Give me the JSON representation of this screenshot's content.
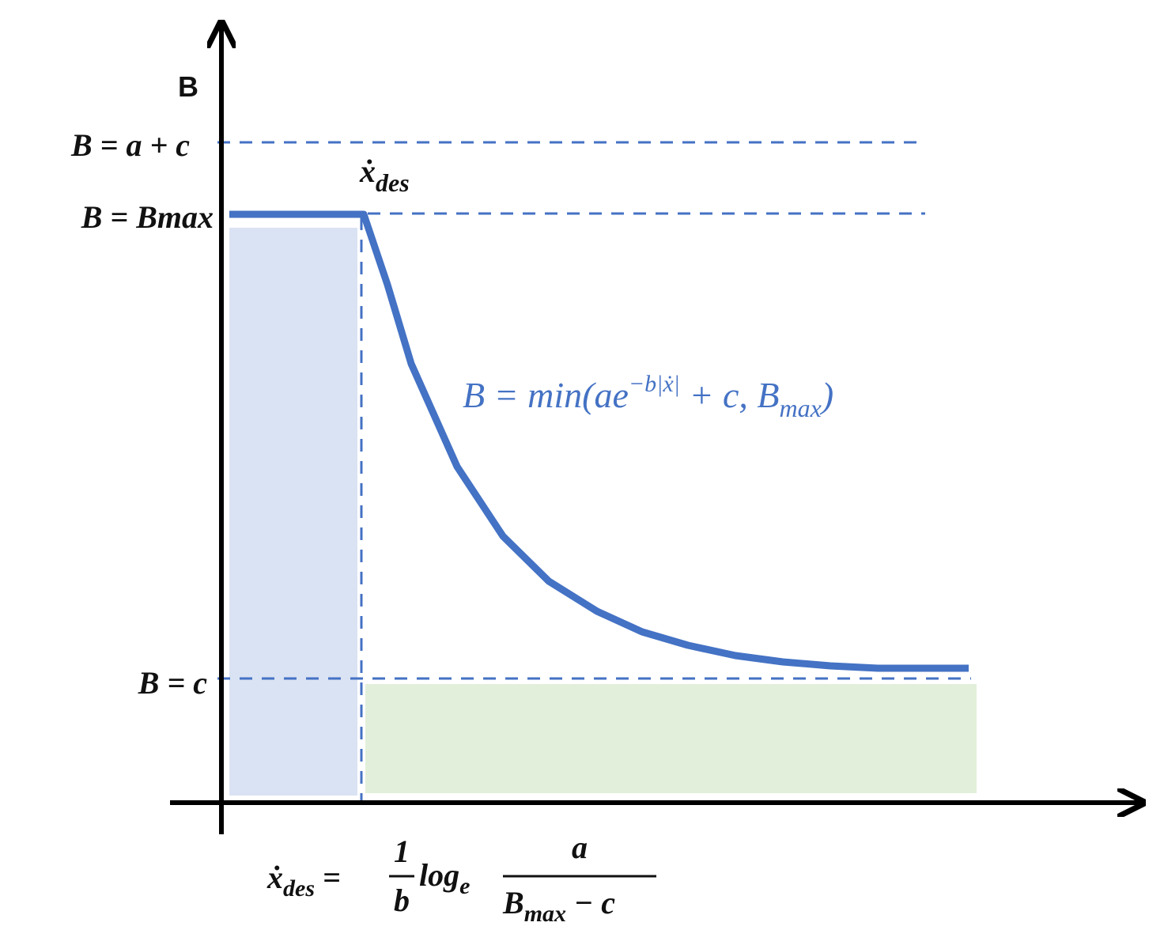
{
  "axis_label": "B",
  "levels": [
    "B = a + c",
    "B = Bmax",
    "B = c"
  ],
  "peak_label": {
    "base": "ẋ",
    "sub": "des"
  },
  "curve_formula": {
    "lhs": "B = min(ae",
    "sup": "−b|ẋ|",
    "mid": " + c, B",
    "sub": "max",
    "end": ")"
  },
  "threshold_formula": {
    "lhs": "ẋ",
    "lhs_sub": "des",
    "eq": " = ",
    "frac1_num": "1",
    "frac1_den": "b",
    "log": "log",
    "log_sub": "e",
    "frac2_num": "a",
    "frac2_den": "B",
    "frac2_den_sub": "max",
    "frac2_den_rest": " − c"
  }
}
